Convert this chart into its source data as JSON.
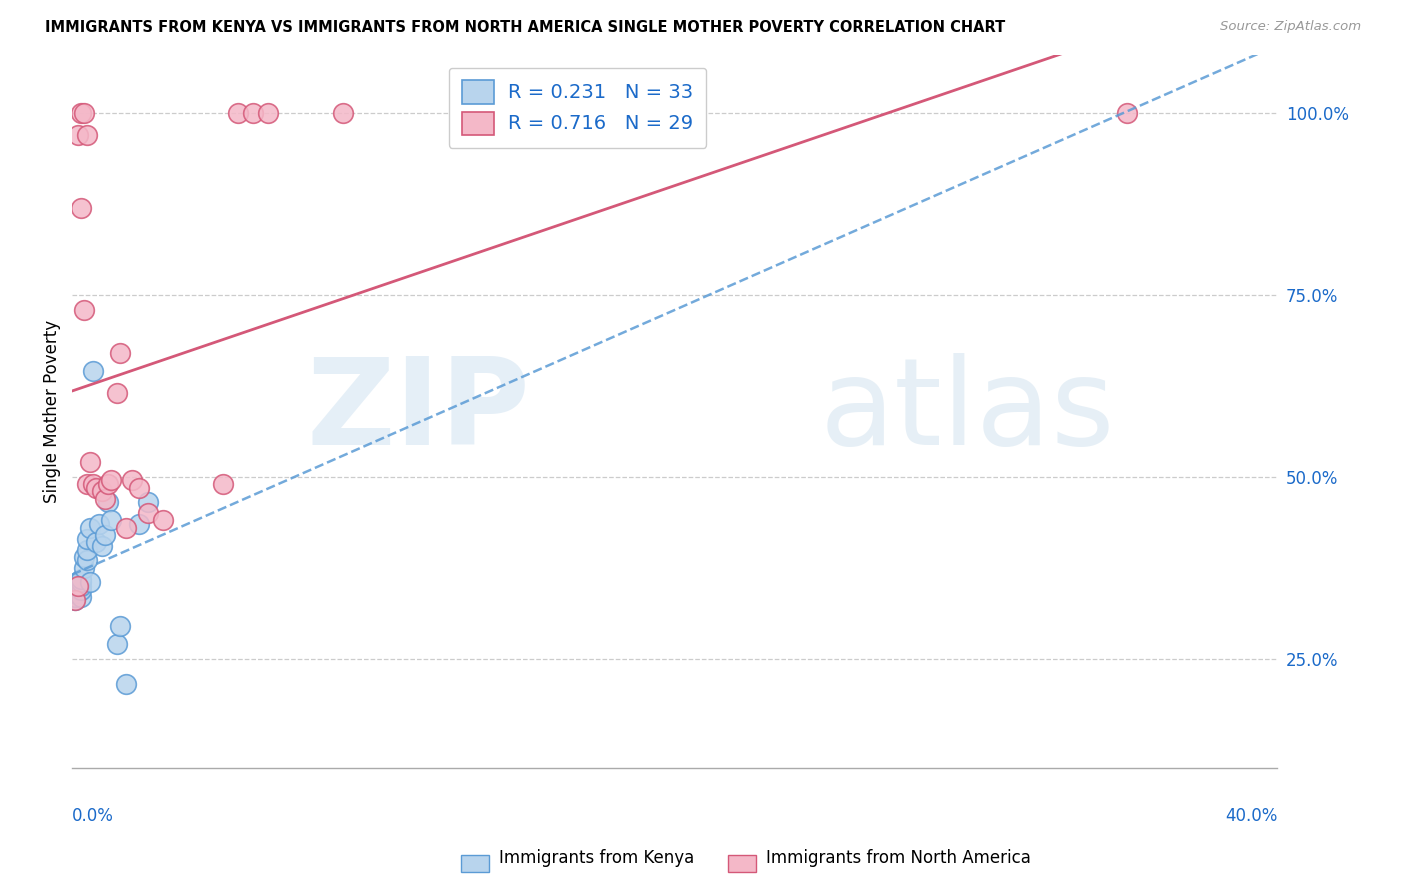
{
  "title": "IMMIGRANTS FROM KENYA VS IMMIGRANTS FROM NORTH AMERICA SINGLE MOTHER POVERTY CORRELATION CHART",
  "source": "Source: ZipAtlas.com",
  "ylabel": "Single Mother Poverty",
  "x_min": 0.0,
  "x_max": 0.4,
  "y_min": 0.1,
  "y_max": 1.08,
  "right_yticks": [
    0.25,
    0.5,
    0.75,
    1.0
  ],
  "right_yticklabels": [
    "25.0%",
    "50.0%",
    "75.0%",
    "100.0%"
  ],
  "kenya_fill_color": "#b8d4ed",
  "kenya_edge_color": "#5b9bd5",
  "na_fill_color": "#f4b8c8",
  "na_edge_color": "#d45878",
  "label_color": "#1b6ac9",
  "kenya_R": 0.231,
  "kenya_N": 33,
  "na_R": 0.716,
  "na_N": 29,
  "kenya_scatter_x": [
    0.001,
    0.001,
    0.001,
    0.001,
    0.001,
    0.002,
    0.002,
    0.002,
    0.002,
    0.003,
    0.003,
    0.003,
    0.003,
    0.003,
    0.004,
    0.004,
    0.005,
    0.005,
    0.005,
    0.006,
    0.006,
    0.007,
    0.008,
    0.009,
    0.01,
    0.011,
    0.012,
    0.013,
    0.015,
    0.016,
    0.018,
    0.022,
    0.025
  ],
  "kenya_scatter_y": [
    0.33,
    0.335,
    0.34,
    0.345,
    0.35,
    0.34,
    0.345,
    0.35,
    0.355,
    0.335,
    0.345,
    0.35,
    0.355,
    0.36,
    0.375,
    0.39,
    0.385,
    0.4,
    0.415,
    0.355,
    0.43,
    0.645,
    0.41,
    0.435,
    0.405,
    0.42,
    0.465,
    0.44,
    0.27,
    0.295,
    0.215,
    0.435,
    0.465
  ],
  "na_scatter_x": [
    0.001,
    0.002,
    0.002,
    0.003,
    0.003,
    0.004,
    0.004,
    0.005,
    0.005,
    0.006,
    0.007,
    0.008,
    0.01,
    0.011,
    0.012,
    0.013,
    0.015,
    0.016,
    0.018,
    0.02,
    0.022,
    0.025,
    0.03,
    0.05,
    0.055,
    0.06,
    0.065,
    0.09,
    0.35
  ],
  "na_scatter_y": [
    0.33,
    0.35,
    0.97,
    0.87,
    1.0,
    0.73,
    1.0,
    0.49,
    0.97,
    0.52,
    0.49,
    0.485,
    0.48,
    0.47,
    0.49,
    0.495,
    0.615,
    0.67,
    0.43,
    0.495,
    0.485,
    0.45,
    0.44,
    0.49,
    1.0,
    1.0,
    1.0,
    1.0,
    1.0
  ]
}
